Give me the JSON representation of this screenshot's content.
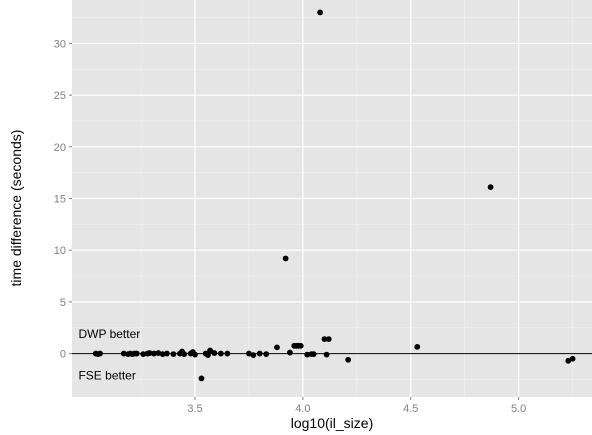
{
  "chart_data": {
    "type": "scatter",
    "title": "",
    "xlabel": "log10(il_size)",
    "ylabel": "time difference (seconds)",
    "xlim": [
      2.93,
      5.34
    ],
    "ylim": [
      -4.2,
      34.2
    ],
    "x_ticks": [
      3.5,
      4.0,
      4.5,
      5.0
    ],
    "x_tick_labels": [
      "3.5",
      "4.0",
      "4.5",
      "5.0"
    ],
    "y_ticks": [
      0,
      5,
      10,
      15,
      20,
      25,
      30
    ],
    "y_tick_labels": [
      "0",
      "5",
      "10",
      "15",
      "20",
      "25",
      "30"
    ],
    "grid": true,
    "reference_line_y": 0,
    "annotations": [
      {
        "text": "DWP better",
        "x": 2.96,
        "y": 1.5
      },
      {
        "text": "FSE better",
        "x": 2.96,
        "y": -2.5
      }
    ],
    "points": [
      {
        "x": 3.04,
        "y": 0.0
      },
      {
        "x": 3.05,
        "y": -0.05
      },
      {
        "x": 3.06,
        "y": 0.0
      },
      {
        "x": 3.17,
        "y": 0.0
      },
      {
        "x": 3.19,
        "y": -0.05
      },
      {
        "x": 3.2,
        "y": 0.0
      },
      {
        "x": 3.21,
        "y": -0.05
      },
      {
        "x": 3.22,
        "y": 0.0
      },
      {
        "x": 3.23,
        "y": 0.0
      },
      {
        "x": 3.26,
        "y": -0.05
      },
      {
        "x": 3.28,
        "y": 0.0
      },
      {
        "x": 3.29,
        "y": 0.05
      },
      {
        "x": 3.31,
        "y": 0.0
      },
      {
        "x": 3.33,
        "y": 0.05
      },
      {
        "x": 3.35,
        "y": -0.05
      },
      {
        "x": 3.37,
        "y": 0.0
      },
      {
        "x": 3.4,
        "y": -0.05
      },
      {
        "x": 3.43,
        "y": 0.0
      },
      {
        "x": 3.44,
        "y": 0.2
      },
      {
        "x": 3.45,
        "y": -0.05
      },
      {
        "x": 3.48,
        "y": 0.0
      },
      {
        "x": 3.49,
        "y": 0.15
      },
      {
        "x": 3.5,
        "y": -0.1
      },
      {
        "x": 3.53,
        "y": -2.4
      },
      {
        "x": 3.55,
        "y": 0.0
      },
      {
        "x": 3.56,
        "y": -0.15
      },
      {
        "x": 3.57,
        "y": 0.3
      },
      {
        "x": 3.59,
        "y": 0.05
      },
      {
        "x": 3.62,
        "y": 0.0
      },
      {
        "x": 3.65,
        "y": 0.0
      },
      {
        "x": 3.75,
        "y": 0.0
      },
      {
        "x": 3.77,
        "y": -0.15
      },
      {
        "x": 3.8,
        "y": 0.0
      },
      {
        "x": 3.83,
        "y": -0.05
      },
      {
        "x": 3.88,
        "y": 0.6
      },
      {
        "x": 3.92,
        "y": 9.2
      },
      {
        "x": 3.94,
        "y": 0.1
      },
      {
        "x": 3.96,
        "y": 0.75
      },
      {
        "x": 3.97,
        "y": 0.75
      },
      {
        "x": 3.98,
        "y": 0.75
      },
      {
        "x": 3.99,
        "y": 0.75
      },
      {
        "x": 4.02,
        "y": -0.1
      },
      {
        "x": 4.04,
        "y": -0.05
      },
      {
        "x": 4.05,
        "y": -0.05
      },
      {
        "x": 4.08,
        "y": 33.0
      },
      {
        "x": 4.1,
        "y": 1.4
      },
      {
        "x": 4.11,
        "y": -0.1
      },
      {
        "x": 4.12,
        "y": 1.4
      },
      {
        "x": 4.21,
        "y": -0.6
      },
      {
        "x": 4.53,
        "y": 0.65
      },
      {
        "x": 4.87,
        "y": 16.1
      },
      {
        "x": 5.23,
        "y": -0.7
      },
      {
        "x": 5.25,
        "y": -0.5
      }
    ]
  }
}
